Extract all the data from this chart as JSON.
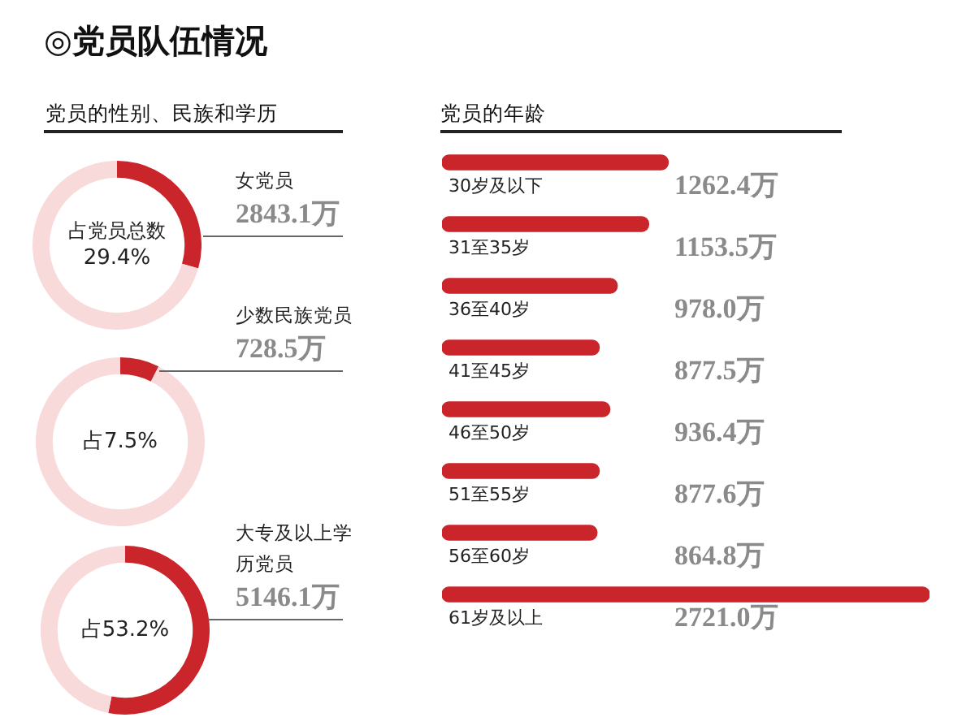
{
  "chart_data": [
    {
      "type": "other",
      "title": "◎党员队伍情况",
      "subtitle": "党员的性别、民族和学历"
    },
    {
      "type": "donut",
      "title": "女党员",
      "annotations": [
        "2843.1万"
      ],
      "categories": [
        "占党员总数",
        null
      ],
      "values": [
        29.4,
        70.6
      ],
      "colors": [
        "#c9252b",
        "#f9dada"
      ],
      "value_labels": [
        "29.4%",
        null
      ]
    },
    {
      "type": "donut",
      "title": "少数民族党员",
      "annotations": [
        "728.5万"
      ],
      "categories": [
        null,
        null
      ],
      "values": [
        7.5,
        92.5
      ],
      "colors": [
        "#c9252b",
        "#f9dada"
      ],
      "value_labels": [
        "占7.5%",
        null
      ]
    },
    {
      "type": "donut",
      "title": "大专及以上学历党员",
      "annotations": [
        "5146.1万"
      ],
      "categories": [
        null,
        null
      ],
      "values": [
        53.2,
        46.8
      ],
      "colors": [
        "#c9252b",
        "#f9dada"
      ],
      "value_labels": [
        "占53.2%",
        null
      ]
    },
    {
      "type": "bar",
      "orientation": "horizontal",
      "title": "党员的年龄",
      "tick_labels": "y",
      "categories": [
        "30岁及以下",
        "31至35岁",
        "36至40岁",
        "41至45岁",
        "46至50岁",
        "51至55岁",
        "56至60岁",
        "61岁及以上"
      ],
      "values": [
        1262.4,
        1153.5,
        978.0,
        877.5,
        936.4,
        877.6,
        864.8,
        2721.0
      ],
      "color": "#c9252b",
      "value_labels": [
        "1262.4万",
        "1153.5万",
        "978.0万",
        "877.5万",
        "936.4万",
        "877.6万",
        "864.8万",
        "2721.0万"
      ]
    }
  ]
}
